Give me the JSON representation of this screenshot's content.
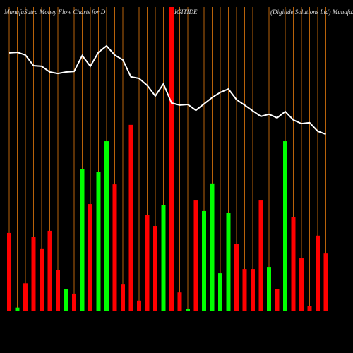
{
  "chart_data": {
    "type": "bar",
    "title_parts": [
      "MunafaSutra  Money Flow  Charts for D",
      "IGITIDE",
      "(Digitide   Solutions Ltd) MunafaS"
    ],
    "ylim": [
      0,
      100
    ],
    "grid": true,
    "grid_color": "#b8620a",
    "series": [
      {
        "name": "money flow",
        "type": "bar",
        "values": [
          25.6,
          1,
          9,
          24.4,
          20.5,
          26.3,
          13.3,
          7.2,
          5.6,
          46.7,
          35.1,
          45.8,
          55.8,
          41.6,
          8.8,
          61.2,
          3.3,
          31.4,
          27.9,
          34.7,
          100,
          6,
          0.5,
          36.5,
          32.8,
          41.9,
          12.3,
          32.3,
          21.9,
          13.7,
          13.7,
          36.5,
          14.4,
          7,
          55.8,
          30.9,
          17.2,
          1.4,
          24.7,
          18.8
        ],
        "colors": [
          "#ff0000",
          "#00ff00",
          "#ff0000",
          "#ff0000",
          "#ff0000",
          "#ff0000",
          "#ff0000",
          "#00ff00",
          "#ff0000",
          "#00ff00",
          "#ff0000",
          "#00ff00",
          "#00ff00",
          "#ff0000",
          "#ff0000",
          "#ff0000",
          "#ff0000",
          "#ff0000",
          "#ff0000",
          "#00ff00",
          "#ff0000",
          "#ff0000",
          "#00ff00",
          "#ff0000",
          "#00ff00",
          "#00ff00",
          "#00ff00",
          "#00ff00",
          "#ff0000",
          "#ff0000",
          "#ff0000",
          "#ff0000",
          "#00ff00",
          "#ff0000",
          "#00ff00",
          "#ff0000",
          "#ff0000",
          "#ff0000",
          "#ff0000",
          "#ff0000"
        ]
      },
      {
        "name": "price",
        "type": "line",
        "color": "#ffffff",
        "values": [
          84.9,
          85.1,
          84.2,
          80.7,
          80.5,
          78.6,
          78.1,
          78.6,
          78.8,
          84,
          80.5,
          85.1,
          87.2,
          84.2,
          82.6,
          77,
          76.5,
          74.2,
          70.7,
          74.7,
          68.4,
          67.7,
          67.9,
          66,
          68.1,
          70.2,
          71.9,
          73,
          69.5,
          67.7,
          65.8,
          64,
          64.7,
          63.5,
          65.6,
          62.8,
          61.6,
          61.9,
          59.1,
          58.1
        ]
      }
    ]
  }
}
